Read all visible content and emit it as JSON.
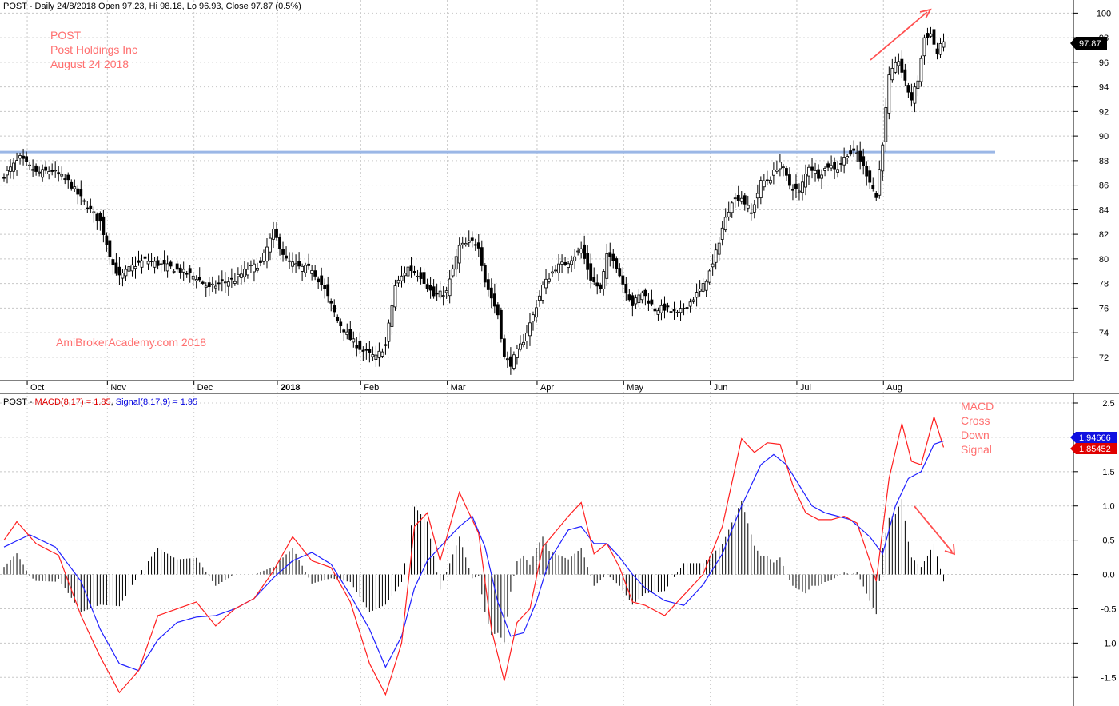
{
  "colors": {
    "up_fill": "#ffffff",
    "down_fill": "#000000",
    "grid": "#c8c8c8",
    "resistance": "#9bb7e6",
    "macd": "#ff2020",
    "signal": "#2020ff",
    "hist": "#000000",
    "annotation": "#ff7070",
    "arrow": "#ff5050"
  },
  "header": {
    "price_prefix": "POST - Daily 24/8/2018 Open 97.23, Hi 98.18, Lo 96.93, Close 97.87 (0.5%)",
    "macd_prefix": "POST - ",
    "macd_label": "MACD(8,17) = 1.85",
    "sep": ", ",
    "signal_label": "Signal(8,17,9) = 1.95"
  },
  "annotations": {
    "symbol": "POST",
    "company": "Post Holdings Inc",
    "date": "August 24 2018",
    "watermark": "AmiBrokerAcademy.com  2018",
    "signal_note": [
      "MACD",
      "Cross",
      "Down",
      "Signal"
    ]
  },
  "badges": {
    "price": "97.87",
    "signal": "1.94666",
    "macd": "1.85452"
  },
  "chart_data": [
    {
      "type": "candlestick",
      "ylim": [
        70,
        101
      ],
      "y_ticks": [
        72,
        74,
        76,
        78,
        80,
        82,
        84,
        86,
        88,
        90,
        92,
        94,
        96,
        98,
        100
      ],
      "x_labels": [
        "Oct",
        "Nov",
        "Dec",
        "2018",
        "Feb",
        "Mar",
        "Apr",
        "May",
        "Jun",
        "Jul",
        "Aug"
      ],
      "resistance_level": 88.7,
      "last_close": 97.87,
      "close_anchors": [
        [
          0,
          86.8
        ],
        [
          5,
          88.2
        ],
        [
          10,
          87.0
        ],
        [
          15,
          87.2
        ],
        [
          20,
          86.3
        ],
        [
          25,
          84.6
        ],
        [
          30,
          83.0
        ],
        [
          34,
          79.5
        ],
        [
          36,
          78.5
        ],
        [
          40,
          79.4
        ],
        [
          44,
          79.9
        ],
        [
          48,
          79.6
        ],
        [
          52,
          79.3
        ],
        [
          56,
          78.9
        ],
        [
          60,
          78.5
        ],
        [
          64,
          77.6
        ],
        [
          68,
          78.1
        ],
        [
          72,
          78.3
        ],
        [
          76,
          79.2
        ],
        [
          80,
          79.6
        ],
        [
          84,
          82.2
        ],
        [
          88,
          79.9
        ],
        [
          92,
          79.3
        ],
        [
          96,
          79.2
        ],
        [
          100,
          77.5
        ],
        [
          104,
          75.0
        ],
        [
          108,
          73.5
        ],
        [
          112,
          72.5
        ],
        [
          116,
          72.0
        ],
        [
          119,
          73.0
        ],
        [
          122,
          77.8
        ],
        [
          126,
          79.3
        ],
        [
          130,
          78.6
        ],
        [
          134,
          77.0
        ],
        [
          138,
          77.3
        ],
        [
          142,
          81.0
        ],
        [
          146,
          81.4
        ],
        [
          148,
          81.1
        ],
        [
          150,
          78.2
        ],
        [
          154,
          75.5
        ],
        [
          156,
          72.0
        ],
        [
          158,
          71.5
        ],
        [
          162,
          73.4
        ],
        [
          165,
          75.4
        ],
        [
          168,
          77.8
        ],
        [
          172,
          79.3
        ],
        [
          176,
          79.8
        ],
        [
          180,
          80.8
        ],
        [
          183,
          78.4
        ],
        [
          186,
          77.5
        ],
        [
          188,
          80.2
        ],
        [
          190,
          80.1
        ],
        [
          193,
          78.0
        ],
        [
          196,
          76.3
        ],
        [
          199,
          77.3
        ],
        [
          203,
          75.9
        ],
        [
          206,
          76.0
        ],
        [
          210,
          75.5
        ],
        [
          214,
          76.5
        ],
        [
          218,
          77.8
        ],
        [
          221,
          79.5
        ],
        [
          224,
          82.5
        ],
        [
          227,
          84.8
        ],
        [
          230,
          85.0
        ],
        [
          233,
          83.7
        ],
        [
          236,
          86.2
        ],
        [
          239,
          86.6
        ],
        [
          242,
          87.9
        ],
        [
          245,
          86.0
        ],
        [
          248,
          85.4
        ],
        [
          251,
          87.6
        ],
        [
          254,
          86.8
        ],
        [
          257,
          87.6
        ],
        [
          260,
          87.4
        ],
        [
          263,
          88.6
        ],
        [
          266,
          88.6
        ],
        [
          268,
          87.5
        ],
        [
          270,
          86.4
        ],
        [
          272,
          85.0
        ],
        [
          274,
          89.5
        ],
        [
          276,
          94.8
        ],
        [
          279,
          96.2
        ],
        [
          281,
          94.3
        ],
        [
          283,
          93.0
        ],
        [
          285,
          94.6
        ],
        [
          287,
          98.0
        ],
        [
          289,
          98.3
        ],
        [
          291,
          96.7
        ],
        [
          293,
          97.87
        ]
      ]
    },
    {
      "type": "line",
      "name": "MACD(8,17)",
      "ylim": [
        -1.85,
        2.5
      ],
      "y_ticks": [
        -1.5,
        -1.0,
        -0.5,
        0.0,
        0.5,
        1.0,
        1.5,
        2.0,
        2.5
      ],
      "series": [
        {
          "name": "MACD",
          "value": 1.85452,
          "anchors": [
            [
              0,
              0.5
            ],
            [
              4,
              0.77
            ],
            [
              10,
              0.45
            ],
            [
              17,
              0.28
            ],
            [
              24,
              -0.6
            ],
            [
              30,
              -1.2
            ],
            [
              36,
              -1.72
            ],
            [
              42,
              -1.4
            ],
            [
              48,
              -0.6
            ],
            [
              54,
              -0.5
            ],
            [
              60,
              -0.4
            ],
            [
              66,
              -0.75
            ],
            [
              72,
              -0.5
            ],
            [
              78,
              -0.35
            ],
            [
              84,
              0.05
            ],
            [
              90,
              0.55
            ],
            [
              96,
              0.2
            ],
            [
              102,
              0.1
            ],
            [
              108,
              -0.4
            ],
            [
              114,
              -1.3
            ],
            [
              119,
              -1.75
            ],
            [
              124,
              -1.0
            ],
            [
              128,
              0.7
            ],
            [
              132,
              0.9
            ],
            [
              136,
              0.2
            ],
            [
              142,
              1.2
            ],
            [
              148,
              0.6
            ],
            [
              152,
              -0.8
            ],
            [
              156,
              -1.55
            ],
            [
              160,
              -0.7
            ],
            [
              164,
              -0.5
            ],
            [
              168,
              0.4
            ],
            [
              176,
              0.85
            ],
            [
              180,
              1.05
            ],
            [
              184,
              0.3
            ],
            [
              188,
              0.45
            ],
            [
              192,
              0.1
            ],
            [
              196,
              -0.4
            ],
            [
              200,
              -0.45
            ],
            [
              206,
              -0.6
            ],
            [
              212,
              -0.3
            ],
            [
              218,
              0.0
            ],
            [
              224,
              0.7
            ],
            [
              230,
              1.98
            ],
            [
              234,
              1.78
            ],
            [
              238,
              1.92
            ],
            [
              242,
              1.9
            ],
            [
              246,
              1.3
            ],
            [
              250,
              0.9
            ],
            [
              254,
              0.8
            ],
            [
              258,
              0.8
            ],
            [
              262,
              0.85
            ],
            [
              266,
              0.75
            ],
            [
              270,
              0.2
            ],
            [
              272,
              -0.1
            ],
            [
              276,
              1.4
            ],
            [
              280,
              2.2
            ],
            [
              283,
              1.65
            ],
            [
              286,
              1.6
            ],
            [
              290,
              2.3
            ],
            [
              293,
              1.85452
            ]
          ]
        },
        {
          "name": "Signal",
          "value": 1.94666,
          "anchors": [
            [
              0,
              0.4
            ],
            [
              8,
              0.58
            ],
            [
              16,
              0.4
            ],
            [
              24,
              -0.1
            ],
            [
              30,
              -0.8
            ],
            [
              36,
              -1.3
            ],
            [
              42,
              -1.4
            ],
            [
              48,
              -0.95
            ],
            [
              54,
              -0.7
            ],
            [
              60,
              -0.62
            ],
            [
              66,
              -0.6
            ],
            [
              72,
              -0.5
            ],
            [
              78,
              -0.35
            ],
            [
              84,
              -0.05
            ],
            [
              90,
              0.2
            ],
            [
              96,
              0.32
            ],
            [
              102,
              0.15
            ],
            [
              108,
              -0.3
            ],
            [
              114,
              -0.8
            ],
            [
              119,
              -1.35
            ],
            [
              124,
              -0.9
            ],
            [
              128,
              -0.2
            ],
            [
              132,
              0.2
            ],
            [
              136,
              0.4
            ],
            [
              142,
              0.7
            ],
            [
              146,
              0.85
            ],
            [
              150,
              0.4
            ],
            [
              154,
              -0.4
            ],
            [
              158,
              -0.9
            ],
            [
              162,
              -0.85
            ],
            [
              166,
              -0.4
            ],
            [
              170,
              0.2
            ],
            [
              176,
              0.65
            ],
            [
              180,
              0.7
            ],
            [
              184,
              0.45
            ],
            [
              188,
              0.45
            ],
            [
              192,
              0.25
            ],
            [
              196,
              0.0
            ],
            [
              200,
              -0.2
            ],
            [
              206,
              -0.38
            ],
            [
              212,
              -0.45
            ],
            [
              218,
              -0.15
            ],
            [
              224,
              0.3
            ],
            [
              230,
              1.0
            ],
            [
              236,
              1.6
            ],
            [
              240,
              1.75
            ],
            [
              244,
              1.6
            ],
            [
              248,
              1.3
            ],
            [
              252,
              1.0
            ],
            [
              256,
              0.9
            ],
            [
              260,
              0.85
            ],
            [
              264,
              0.8
            ],
            [
              270,
              0.55
            ],
            [
              274,
              0.3
            ],
            [
              278,
              1.0
            ],
            [
              282,
              1.4
            ],
            [
              286,
              1.5
            ],
            [
              290,
              1.9
            ],
            [
              293,
              1.94666
            ]
          ]
        }
      ]
    }
  ]
}
